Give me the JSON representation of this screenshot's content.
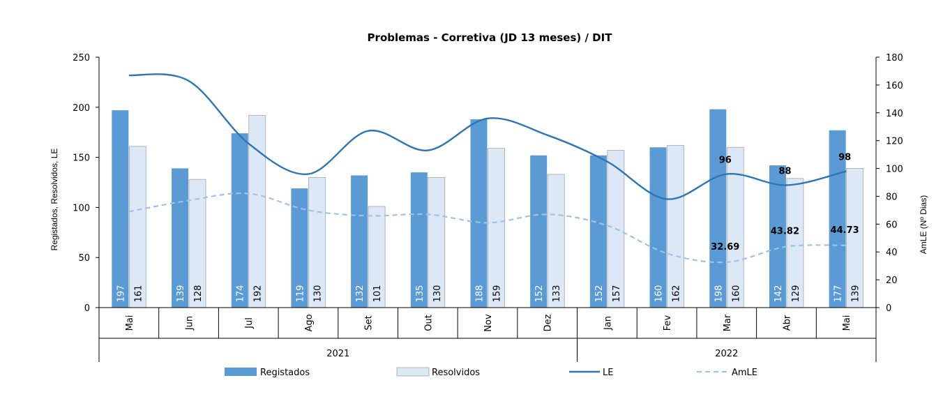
{
  "chart_data": {
    "type": "bar",
    "title": "Problemas - Corretiva (JD 13 meses) / DIT",
    "ylabel": "Registados, Resolvidos, LE",
    "y2label": "AmLE (Nº Dias)",
    "ylim": [
      0,
      250
    ],
    "y2lim": [
      0,
      180
    ],
    "yticks": [
      "0",
      "50",
      "100",
      "150",
      "200",
      "250"
    ],
    "y2ticks": [
      "0",
      "20",
      "40",
      "60",
      "80",
      "100",
      "120",
      "140",
      "160",
      "180"
    ],
    "categories": [
      "Mai",
      "Jun",
      "Jul",
      "Ago",
      "Set",
      "Out",
      "Nov",
      "Dez",
      "Jan",
      "Fev",
      "Mar",
      "Abr",
      "Mai"
    ],
    "year_groups": [
      {
        "label": "2021",
        "start": 0,
        "end": 7
      },
      {
        "label": "2022",
        "start": 8,
        "end": 12
      }
    ],
    "series": [
      {
        "name": "Registados",
        "kind": "bar",
        "color": "#5b9bd5",
        "labels": [
          "197",
          "139",
          "174",
          "119",
          "132",
          "135",
          "188",
          "152",
          "152",
          "160",
          "198",
          "142",
          "177"
        ],
        "values": [
          197,
          139,
          174,
          119,
          132,
          135,
          188,
          152,
          152,
          160,
          198,
          142,
          177
        ]
      },
      {
        "name": "Resolvidos",
        "kind": "bar",
        "color": "#dce8f5",
        "labels": [
          "161",
          "128",
          "192",
          "130",
          "101",
          "130",
          "159",
          "133",
          "157",
          "162",
          "160",
          "129",
          "139"
        ],
        "values": [
          161,
          128,
          192,
          130,
          101,
          130,
          159,
          133,
          157,
          162,
          160,
          129,
          139
        ]
      },
      {
        "name": "LE",
        "kind": "line",
        "axis": "y2",
        "color": "#2e75b6",
        "values": [
          167,
          163,
          118,
          96,
          127,
          113,
          136,
          124,
          105,
          78,
          96,
          88,
          98
        ],
        "point_labels": [
          null,
          null,
          null,
          null,
          null,
          null,
          null,
          null,
          null,
          null,
          "96",
          "88",
          "98"
        ]
      },
      {
        "name": "AmLE",
        "kind": "line-dashed",
        "axis": "y2",
        "color": "#9dc3e6",
        "values": [
          69,
          77,
          82,
          70,
          66,
          67,
          61,
          67,
          59,
          39,
          32.69,
          43.82,
          44.73
        ],
        "point_labels": [
          null,
          null,
          null,
          null,
          null,
          null,
          null,
          null,
          null,
          null,
          "32.69",
          "43.82",
          "44.73"
        ]
      }
    ],
    "legend": "bottom"
  }
}
